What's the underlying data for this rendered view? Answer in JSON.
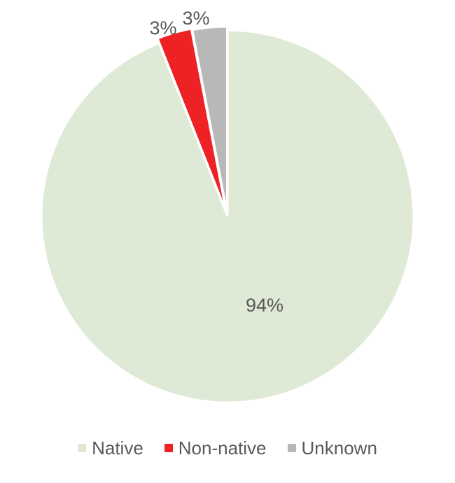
{
  "chart_data": {
    "type": "pie",
    "title": "",
    "categories": [
      "Native",
      "Non-native",
      "Unknown"
    ],
    "values": [
      94,
      3,
      3
    ],
    "labels": [
      "94%",
      "3%",
      "3%"
    ],
    "colors": [
      "#dfead6",
      "#ee2124",
      "#b8b8b8"
    ],
    "start": "12 o'clock",
    "direction": "clockwise",
    "legend_position": "bottom"
  }
}
